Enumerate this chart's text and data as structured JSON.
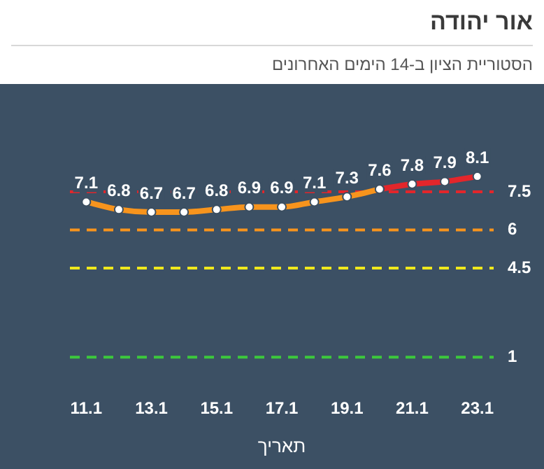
{
  "chart_data": {
    "type": "line",
    "title": "אור יהודה",
    "subtitle": "הסטוריית הציון ב-14 הימים האחרונים",
    "xlabel": "תאריך",
    "categories": [
      "11.1",
      null,
      "13.1",
      null,
      "15.1",
      null,
      "17.1",
      null,
      "19.1",
      null,
      "21.1",
      null,
      "23.1"
    ],
    "series": [
      {
        "color": "#f7941d",
        "values": [
          7.1,
          6.8,
          6.7,
          6.7,
          6.8,
          6.9,
          6.9,
          7.1,
          7.3,
          7.6,
          null,
          null,
          null
        ],
        "value_labels": [
          "7.1",
          "6.8",
          "6.7",
          "6.7",
          "6.8",
          "6.9",
          "6.9",
          "7.1",
          "7.3",
          null,
          null,
          null,
          null
        ]
      },
      {
        "color": "#e3262b",
        "values": [
          null,
          null,
          null,
          null,
          null,
          null,
          null,
          null,
          null,
          7.6,
          7.8,
          7.9,
          8.1
        ],
        "value_labels": [
          null,
          null,
          null,
          null,
          null,
          null,
          null,
          null,
          null,
          "7.6",
          "7.8",
          "7.9",
          "8.1"
        ]
      }
    ],
    "tick_labels": "x",
    "marker": "circle",
    "grid": false,
    "legend": false,
    "ref_lines": [
      {
        "axis": "y",
        "value": 7.5,
        "label": "7.5",
        "color": "#e3262b",
        "line_style": "dashed"
      },
      {
        "axis": "y",
        "value": 6,
        "label": "6",
        "color": "#f7941d",
        "line_style": "dashed"
      },
      {
        "axis": "y",
        "value": 4.5,
        "label": "4.5",
        "color": "#f0e81c",
        "line_style": "dashed"
      },
      {
        "axis": "y",
        "value": 1,
        "label": "1",
        "color": "#3cc83c",
        "line_style": "dashed"
      }
    ]
  }
}
